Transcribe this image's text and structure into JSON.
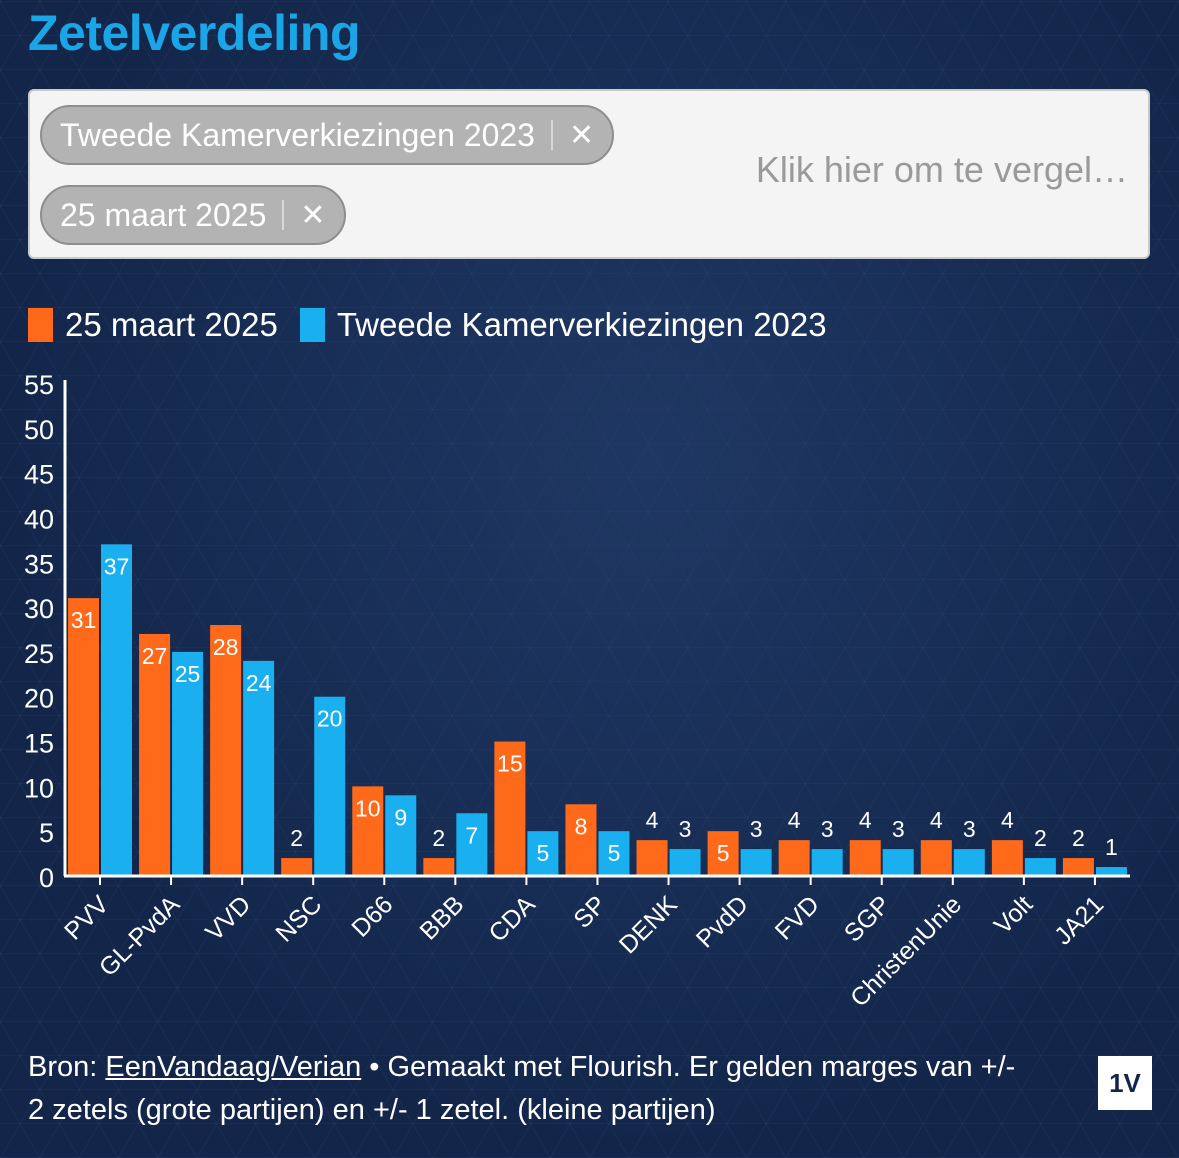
{
  "title": "Zetelverdeling",
  "filter": {
    "chips": [
      {
        "label": "Tweede Kamerverkiezingen 2023",
        "remove": "✕"
      },
      {
        "label": "25 maart 2025",
        "remove": "✕"
      }
    ],
    "placeholder": "Klik hier om te vergel…"
  },
  "legend": [
    {
      "label": "25 maart 2025",
      "color": "#ff6a1a"
    },
    {
      "label": "Tweede Kamerverkiezingen 2023",
      "color": "#1ab0f0"
    }
  ],
  "chart_data": {
    "type": "bar",
    "categories": [
      "PVV",
      "GL-PvdA",
      "VVD",
      "NSC",
      "D66",
      "BBB",
      "CDA",
      "SP",
      "DENK",
      "PvdD",
      "FVD",
      "SGP",
      "ChristenUnie",
      "Volt",
      "JA21"
    ],
    "series": [
      {
        "name": "25 maart 2025",
        "color": "#ff6a1a",
        "values": [
          31,
          27,
          28,
          2,
          10,
          2,
          15,
          8,
          4,
          5,
          4,
          4,
          4,
          4,
          2
        ]
      },
      {
        "name": "Tweede Kamerverkiezingen 2023",
        "color": "#1ab0f0",
        "values": [
          37,
          25,
          24,
          20,
          9,
          7,
          5,
          5,
          3,
          3,
          3,
          3,
          3,
          2,
          1
        ]
      }
    ],
    "ylim": [
      0,
      55
    ],
    "yticks": [
      "0",
      "5",
      "10",
      "15",
      "20",
      "25",
      "30",
      "35",
      "40",
      "45",
      "50",
      "55"
    ],
    "xlabel": "",
    "ylabel": ""
  },
  "footer": {
    "prefix": "Bron: ",
    "source_link": "EenVandaag/Verian",
    "text": " • Gemaakt met Flourish. Er gelden marges van +/- 2 zetels (grote partijen) en +/- 1 zetel. (kleine partijen)"
  },
  "logo": "1V"
}
